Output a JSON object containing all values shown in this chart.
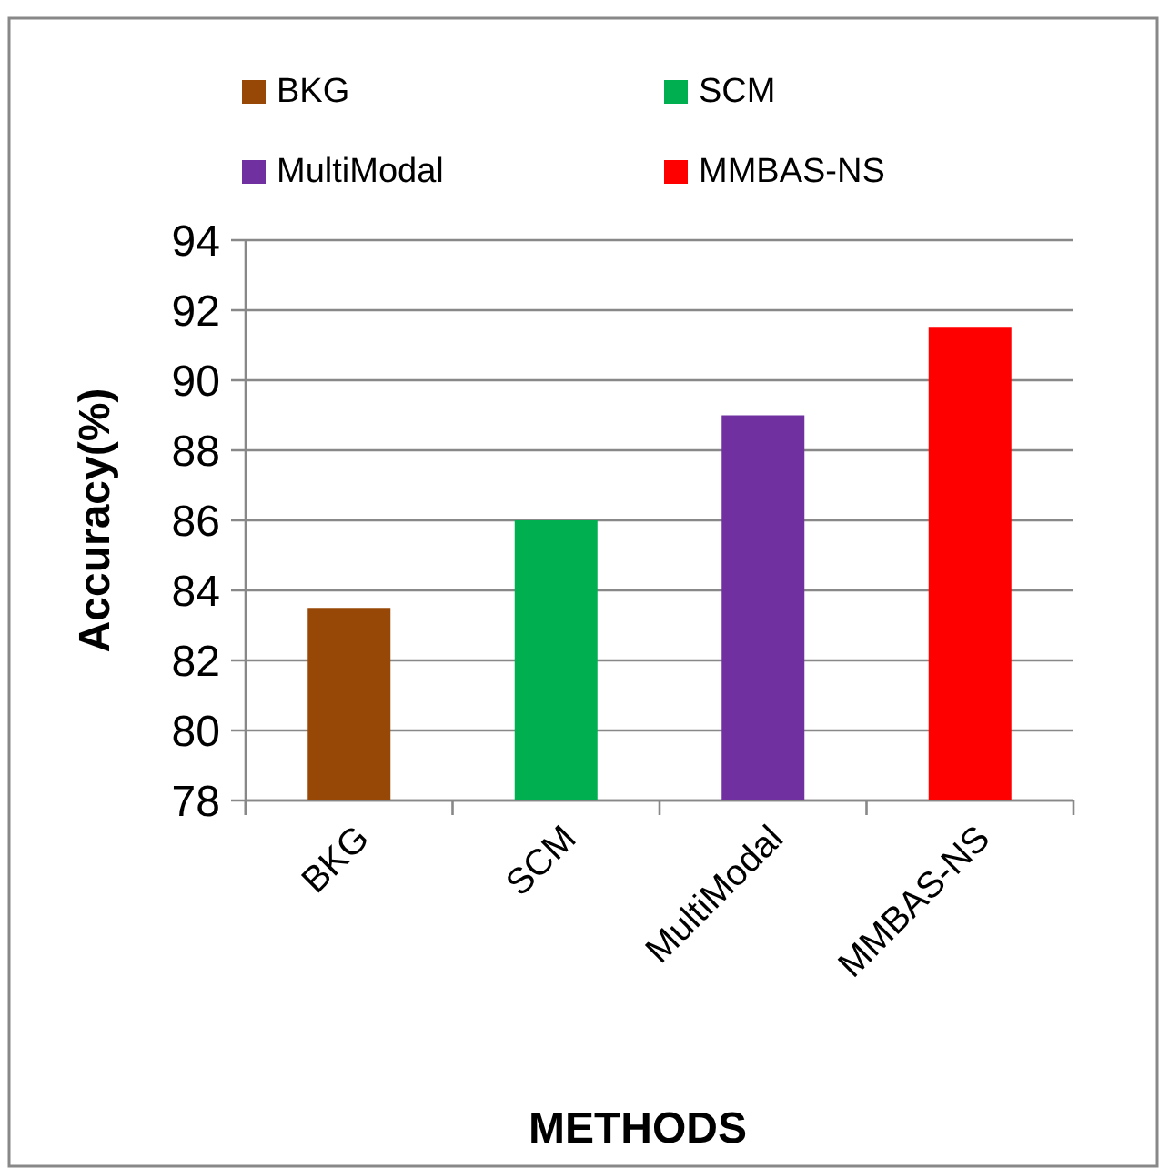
{
  "chart_data": {
    "type": "bar",
    "xlabel": "METHODS",
    "ylabel": "Accuracy(%)",
    "categories": [
      "BKG",
      "SCM",
      "MultiModal",
      "MMBAS-NS"
    ],
    "series": [
      {
        "name": "BKG",
        "color": "#974806",
        "values": [
          83.5,
          null,
          null,
          null
        ]
      },
      {
        "name": "SCM",
        "color": "#00b050",
        "values": [
          null,
          86,
          null,
          null
        ]
      },
      {
        "name": "MultiModal",
        "color": "#7030a0",
        "values": [
          null,
          null,
          89,
          null
        ]
      },
      {
        "name": "MMBAS-NS",
        "color": "#ff0000",
        "values": [
          null,
          null,
          null,
          91.5
        ]
      }
    ],
    "ylim": [
      78,
      94
    ],
    "yticks": [
      78,
      80,
      82,
      84,
      86,
      88,
      90,
      92,
      94
    ],
    "grid": "y",
    "legend": "top"
  }
}
